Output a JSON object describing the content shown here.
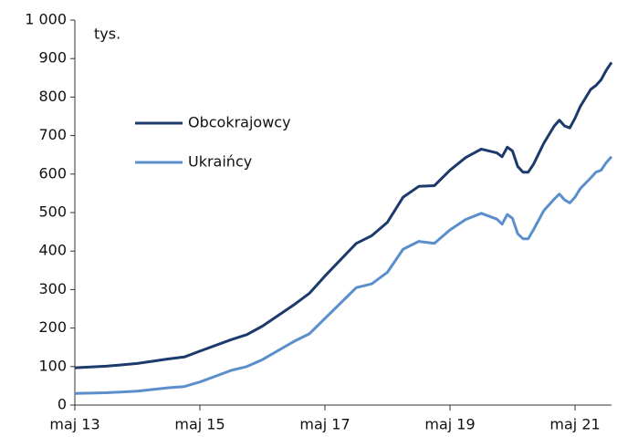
{
  "chart_data": {
    "type": "line",
    "annotations": [
      "tys."
    ],
    "x": [
      "2013-05",
      "2013-11",
      "2014-05",
      "2014-11",
      "2015-02",
      "2015-05",
      "2015-11",
      "2016-02",
      "2016-05",
      "2016-11",
      "2017-02",
      "2017-05",
      "2017-11",
      "2018-02",
      "2018-05",
      "2018-08",
      "2018-11",
      "2019-02",
      "2019-05",
      "2019-08",
      "2019-11",
      "2020-02",
      "2020-03",
      "2020-04",
      "2020-05",
      "2020-06",
      "2020-07",
      "2020-08",
      "2020-09",
      "2020-11",
      "2021-01",
      "2021-02",
      "2021-03",
      "2021-04",
      "2021-05",
      "2021-06",
      "2021-08",
      "2021-09",
      "2021-10",
      "2021-11",
      "2021-12"
    ],
    "series": [
      {
        "name": "Obcokrajowcy",
        "color": "#1c3a6b",
        "values": [
          97,
          101,
          108,
          120,
          125,
          140,
          170,
          183,
          205,
          260,
          290,
          335,
          420,
          440,
          475,
          540,
          568,
          570,
          610,
          643,
          665,
          655,
          645,
          670,
          660,
          620,
          605,
          605,
          625,
          680,
          725,
          740,
          725,
          720,
          745,
          775,
          820,
          830,
          845,
          870,
          890
        ]
      },
      {
        "name": "Ukraińcy",
        "color": "#5b8fcb",
        "values": [
          30,
          32,
          36,
          45,
          48,
          60,
          90,
          100,
          118,
          165,
          185,
          225,
          305,
          315,
          345,
          405,
          425,
          420,
          455,
          482,
          498,
          483,
          470,
          495,
          485,
          445,
          432,
          432,
          455,
          505,
          535,
          548,
          533,
          525,
          540,
          562,
          590,
          605,
          610,
          630,
          645
        ]
      }
    ],
    "xlim": [
      "2013-05",
      "2021-12"
    ],
    "xticks": [
      {
        "value": "2013-05",
        "label": "maj 13"
      },
      {
        "value": "2015-05",
        "label": "maj 15"
      },
      {
        "value": "2017-05",
        "label": "maj 17"
      },
      {
        "value": "2019-05",
        "label": "maj 19"
      },
      {
        "value": "2021-05",
        "label": "maj 21"
      }
    ],
    "ylim": [
      0,
      1000
    ],
    "yticks": [
      0,
      100,
      200,
      300,
      400,
      500,
      600,
      700,
      800,
      900,
      {
        "value": 1000,
        "label": "1 000"
      }
    ],
    "grid": false,
    "legend": "upper left"
  }
}
